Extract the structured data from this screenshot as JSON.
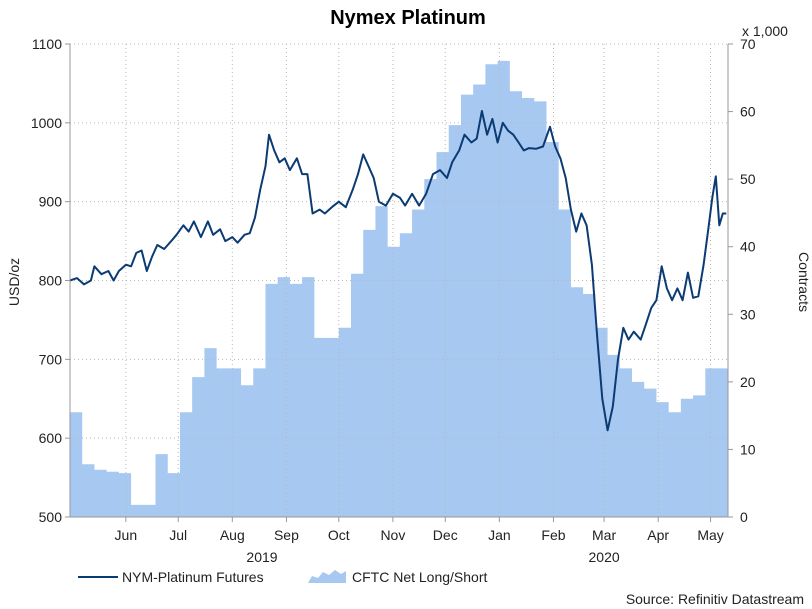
{
  "chart_data": {
    "type": "line",
    "title": "Nymex Platinum",
    "ylabel_left": "USD/oz",
    "ylabel_right": "Contracts",
    "right_multiplier": "x 1,000",
    "ylim_left": [
      500,
      1100
    ],
    "ylim_right": [
      0,
      70
    ],
    "yticks_left": [
      500,
      600,
      700,
      800,
      900,
      1000,
      1100
    ],
    "yticks_right": [
      0,
      10,
      20,
      30,
      40,
      50,
      60,
      70
    ],
    "xlim": [
      "2019-05-14",
      "2020-05-25"
    ],
    "month_ticks": [
      {
        "label": "Jun",
        "date": "2019-06-15"
      },
      {
        "label": "Jul",
        "date": "2019-07-15"
      },
      {
        "label": "Aug",
        "date": "2019-08-15"
      },
      {
        "label": "Sep",
        "date": "2019-09-15"
      },
      {
        "label": "Oct",
        "date": "2019-10-15"
      },
      {
        "label": "Nov",
        "date": "2019-11-15"
      },
      {
        "label": "Dec",
        "date": "2019-12-15"
      },
      {
        "label": "Jan",
        "date": "2020-01-15"
      },
      {
        "label": "Feb",
        "date": "2020-02-15"
      },
      {
        "label": "Mar",
        "date": "2020-03-15"
      },
      {
        "label": "Apr",
        "date": "2020-04-15"
      },
      {
        "label": "May",
        "date": "2020-05-15"
      }
    ],
    "year_labels": [
      {
        "label": "2019",
        "date": "2019-09-01"
      },
      {
        "label": "2020",
        "date": "2020-03-15"
      }
    ],
    "grid": true,
    "legend_position": "bottom-left",
    "source": "Source: Refinitiv Datastream",
    "colors": {
      "line": "#0b3b73",
      "area": "#a7c8f0",
      "grid": "#b8b8b8",
      "axis": "#999999"
    },
    "series": [
      {
        "name": "NYM-Platinum Futures",
        "type": "line",
        "axis": "left",
        "points": [
          [
            "2019-05-14",
            800
          ],
          [
            "2019-05-18",
            803
          ],
          [
            "2019-05-22",
            795
          ],
          [
            "2019-05-26",
            800
          ],
          [
            "2019-05-28",
            818
          ],
          [
            "2019-06-01",
            808
          ],
          [
            "2019-06-05",
            812
          ],
          [
            "2019-06-08",
            800
          ],
          [
            "2019-06-11",
            812
          ],
          [
            "2019-06-15",
            820
          ],
          [
            "2019-06-18",
            818
          ],
          [
            "2019-06-21",
            835
          ],
          [
            "2019-06-24",
            838
          ],
          [
            "2019-06-27",
            812
          ],
          [
            "2019-06-30",
            830
          ],
          [
            "2019-07-03",
            845
          ],
          [
            "2019-07-07",
            840
          ],
          [
            "2019-07-11",
            850
          ],
          [
            "2019-07-14",
            858
          ],
          [
            "2019-07-18",
            870
          ],
          [
            "2019-07-21",
            862
          ],
          [
            "2019-07-24",
            875
          ],
          [
            "2019-07-28",
            855
          ],
          [
            "2019-08-01",
            875
          ],
          [
            "2019-08-04",
            858
          ],
          [
            "2019-08-08",
            865
          ],
          [
            "2019-08-11",
            850
          ],
          [
            "2019-08-15",
            855
          ],
          [
            "2019-08-18",
            848
          ],
          [
            "2019-08-22",
            858
          ],
          [
            "2019-08-25",
            860
          ],
          [
            "2019-08-28",
            880
          ],
          [
            "2019-08-31",
            915
          ],
          [
            "2019-09-03",
            945
          ],
          [
            "2019-09-05",
            985
          ],
          [
            "2019-09-08",
            965
          ],
          [
            "2019-09-11",
            950
          ],
          [
            "2019-09-14",
            955
          ],
          [
            "2019-09-17",
            940
          ],
          [
            "2019-09-21",
            955
          ],
          [
            "2019-09-24",
            935
          ],
          [
            "2019-09-27",
            935
          ],
          [
            "2019-09-30",
            885
          ],
          [
            "2019-10-04",
            890
          ],
          [
            "2019-10-07",
            885
          ],
          [
            "2019-10-11",
            893
          ],
          [
            "2019-10-15",
            900
          ],
          [
            "2019-10-19",
            893
          ],
          [
            "2019-10-23",
            915
          ],
          [
            "2019-10-26",
            935
          ],
          [
            "2019-10-29",
            960
          ],
          [
            "2019-11-01",
            945
          ],
          [
            "2019-11-04",
            930
          ],
          [
            "2019-11-07",
            900
          ],
          [
            "2019-11-11",
            895
          ],
          [
            "2019-11-15",
            910
          ],
          [
            "2019-11-19",
            905
          ],
          [
            "2019-11-22",
            895
          ],
          [
            "2019-11-26",
            910
          ],
          [
            "2019-11-30",
            895
          ],
          [
            "2019-12-04",
            910
          ],
          [
            "2019-12-08",
            935
          ],
          [
            "2019-12-12",
            940
          ],
          [
            "2019-12-16",
            930
          ],
          [
            "2019-12-19",
            950
          ],
          [
            "2019-12-23",
            965
          ],
          [
            "2019-12-26",
            985
          ],
          [
            "2019-12-30",
            975
          ],
          [
            "2020-01-02",
            980
          ],
          [
            "2020-01-05",
            1015
          ],
          [
            "2020-01-08",
            985
          ],
          [
            "2020-01-11",
            1005
          ],
          [
            "2020-01-14",
            975
          ],
          [
            "2020-01-17",
            1000
          ],
          [
            "2020-01-20",
            990
          ],
          [
            "2020-01-23",
            985
          ],
          [
            "2020-01-26",
            975
          ],
          [
            "2020-01-29",
            965
          ],
          [
            "2020-02-01",
            968
          ],
          [
            "2020-02-05",
            967
          ],
          [
            "2020-02-09",
            970
          ],
          [
            "2020-02-13",
            995
          ],
          [
            "2020-02-16",
            970
          ],
          [
            "2020-02-19",
            955
          ],
          [
            "2020-02-22",
            930
          ],
          [
            "2020-02-25",
            890
          ],
          [
            "2020-02-28",
            862
          ],
          [
            "2020-03-02",
            885
          ],
          [
            "2020-03-05",
            870
          ],
          [
            "2020-03-08",
            820
          ],
          [
            "2020-03-11",
            730
          ],
          [
            "2020-03-14",
            650
          ],
          [
            "2020-03-17",
            610
          ],
          [
            "2020-03-20",
            640
          ],
          [
            "2020-03-23",
            700
          ],
          [
            "2020-03-26",
            740
          ],
          [
            "2020-03-29",
            725
          ],
          [
            "2020-04-01",
            735
          ],
          [
            "2020-04-05",
            725
          ],
          [
            "2020-04-08",
            745
          ],
          [
            "2020-04-11",
            765
          ],
          [
            "2020-04-14",
            775
          ],
          [
            "2020-04-17",
            818
          ],
          [
            "2020-04-20",
            790
          ],
          [
            "2020-04-23",
            775
          ],
          [
            "2020-04-26",
            790
          ],
          [
            "2020-04-29",
            775
          ],
          [
            "2020-05-02",
            810
          ],
          [
            "2020-05-05",
            778
          ],
          [
            "2020-05-08",
            780
          ],
          [
            "2020-05-11",
            820
          ],
          [
            "2020-05-14",
            870
          ],
          [
            "2020-05-16",
            905
          ],
          [
            "2020-05-18",
            932
          ],
          [
            "2020-05-20",
            870
          ],
          [
            "2020-05-22",
            885
          ],
          [
            "2020-05-24",
            885
          ]
        ]
      },
      {
        "name": "CFTC Net Long/Short",
        "type": "area",
        "axis": "right",
        "weekly": [
          [
            "2019-05-14",
            15.5
          ],
          [
            "2019-05-21",
            7.8
          ],
          [
            "2019-05-28",
            7
          ],
          [
            "2019-06-04",
            6.7
          ],
          [
            "2019-06-11",
            6.5
          ],
          [
            "2019-06-18",
            1.8
          ],
          [
            "2019-06-25",
            1.8
          ],
          [
            "2019-07-02",
            9.3
          ],
          [
            "2019-07-09",
            6.5
          ],
          [
            "2019-07-16",
            15.5
          ],
          [
            "2019-07-23",
            20.7
          ],
          [
            "2019-07-30",
            25
          ],
          [
            "2019-08-06",
            22
          ],
          [
            "2019-08-13",
            22
          ],
          [
            "2019-08-20",
            19.5
          ],
          [
            "2019-08-27",
            22
          ],
          [
            "2019-09-03",
            34.5
          ],
          [
            "2019-09-10",
            35.5
          ],
          [
            "2019-09-17",
            34.5
          ],
          [
            "2019-09-24",
            35.5
          ],
          [
            "2019-10-01",
            26.5
          ],
          [
            "2019-10-08",
            26.5
          ],
          [
            "2019-10-15",
            28
          ],
          [
            "2019-10-22",
            36
          ],
          [
            "2019-10-29",
            42.5
          ],
          [
            "2019-11-05",
            46
          ],
          [
            "2019-11-12",
            40
          ],
          [
            "2019-11-19",
            42
          ],
          [
            "2019-11-26",
            45.5
          ],
          [
            "2019-12-03",
            50
          ],
          [
            "2019-12-10",
            54
          ],
          [
            "2019-12-17",
            58
          ],
          [
            "2019-12-24",
            62.5
          ],
          [
            "2019-12-31",
            64
          ],
          [
            "2020-01-07",
            67
          ],
          [
            "2020-01-14",
            67.5
          ],
          [
            "2020-01-21",
            63
          ],
          [
            "2020-01-28",
            62
          ],
          [
            "2020-02-04",
            61.5
          ],
          [
            "2020-02-11",
            55.5
          ],
          [
            "2020-02-18",
            45.5
          ],
          [
            "2020-02-25",
            34
          ],
          [
            "2020-03-03",
            33
          ],
          [
            "2020-03-10",
            28
          ],
          [
            "2020-03-17",
            24
          ],
          [
            "2020-03-24",
            22
          ],
          [
            "2020-03-31",
            20
          ],
          [
            "2020-04-07",
            19
          ],
          [
            "2020-04-14",
            17
          ],
          [
            "2020-04-21",
            15.5
          ],
          [
            "2020-04-28",
            17.5
          ],
          [
            "2020-05-05",
            18
          ],
          [
            "2020-05-12",
            22
          ],
          [
            "2020-05-19",
            22
          ]
        ]
      }
    ]
  }
}
